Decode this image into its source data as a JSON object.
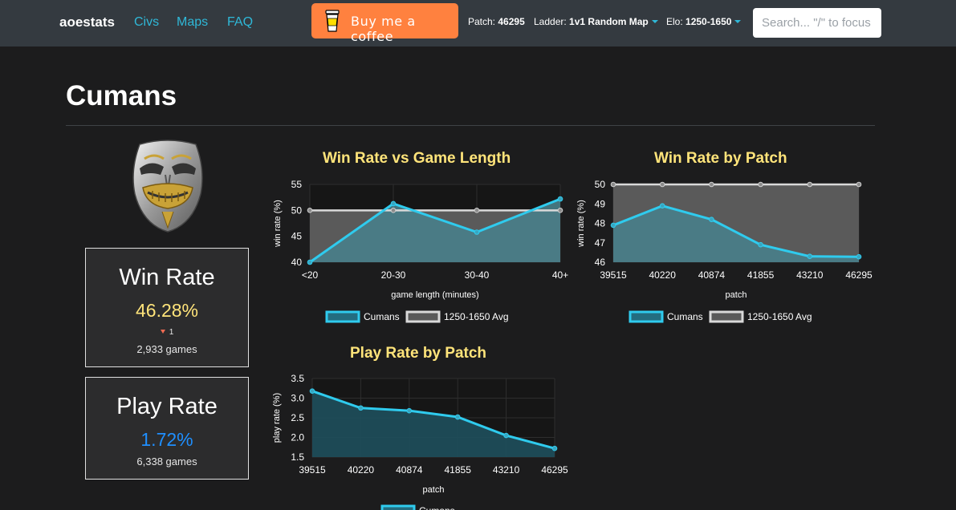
{
  "nav": {
    "brand": "aoestats",
    "links": [
      "Civs",
      "Maps",
      "FAQ"
    ],
    "coffee_label": "Buy me a coffee",
    "patch_label": "Patch:",
    "patch_value": "46295",
    "ladder_label": "Ladder:",
    "ladder_value": "1v1 Random Map",
    "elo_label": "Elo:",
    "elo_value": "1250-1650",
    "search_placeholder": "Search... \"/\" to focus"
  },
  "page": {
    "title": "Cumans"
  },
  "emblem_icon": "cumans-mask-icon",
  "win_card": {
    "label": "Win Rate",
    "value": "46.28%",
    "value_color": "#ffe47a",
    "rank_change": "1",
    "games": "2,933 games"
  },
  "play_card": {
    "label": "Play Rate",
    "value": "1.72%",
    "value_color": "#1f8fff",
    "games": "6,338 games"
  },
  "colors": {
    "accent": "#2fcbee",
    "average": "#d9d9d9",
    "title": "#ffe47a"
  },
  "chart_data": [
    {
      "type": "line",
      "title": "Win Rate vs Game Length",
      "xlabel": "game length (minutes)",
      "ylabel": "win rate (%)",
      "categories": [
        "<20",
        "20-30",
        "30-40",
        "40+"
      ],
      "ylim": [
        40,
        55
      ],
      "yticks": [
        "40",
        "45",
        "50",
        "55"
      ],
      "series": [
        {
          "name": "Cumans",
          "values": [
            40.0,
            51.3,
            45.8,
            52.2
          ]
        },
        {
          "name": "1250-1650 Avg",
          "values": [
            50,
            50,
            50,
            50
          ]
        }
      ],
      "legend": "bottom"
    },
    {
      "type": "line",
      "title": "Win Rate by Patch",
      "xlabel": "patch",
      "ylabel": "win rate (%)",
      "categories": [
        "39515",
        "40220",
        "40874",
        "41855",
        "43210",
        "46295"
      ],
      "ylim": [
        46,
        50
      ],
      "yticks": [
        "46",
        "47",
        "48",
        "49",
        "50"
      ],
      "series": [
        {
          "name": "Cumans",
          "values": [
            47.9,
            48.9,
            48.2,
            46.9,
            46.3,
            46.28
          ]
        },
        {
          "name": "1250-1650 Avg",
          "values": [
            50,
            50,
            50,
            50,
            50,
            50
          ]
        }
      ],
      "legend": "bottom"
    },
    {
      "type": "line",
      "title": "Play Rate by Patch",
      "xlabel": "patch",
      "ylabel": "play rate (%)",
      "categories": [
        "39515",
        "40220",
        "40874",
        "41855",
        "43210",
        "46295"
      ],
      "ylim": [
        1.5,
        3.5
      ],
      "yticks": [
        "1.5",
        "2.0",
        "2.5",
        "3.0",
        "3.5"
      ],
      "series": [
        {
          "name": "Cumans",
          "values": [
            3.18,
            2.75,
            2.68,
            2.52,
            2.05,
            1.72
          ]
        }
      ],
      "legend": "bottom"
    }
  ]
}
